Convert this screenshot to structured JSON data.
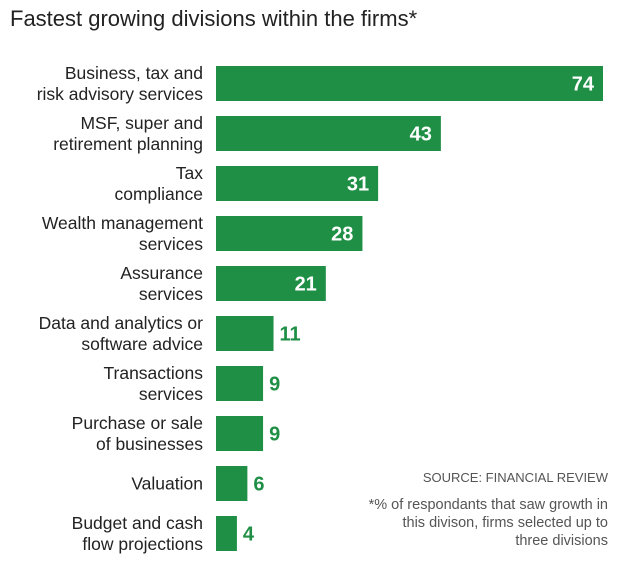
{
  "chart_data": {
    "type": "bar",
    "orientation": "horizontal",
    "title": "Fastest growing divisions within the firms*",
    "categories": [
      [
        "Business, tax and",
        "risk advisory services"
      ],
      [
        "MSF, super and",
        "retirement planning"
      ],
      [
        "Tax",
        "compliance"
      ],
      [
        "Wealth management",
        "services"
      ],
      [
        "Assurance",
        "services"
      ],
      [
        "Data and analytics or",
        "software advice"
      ],
      [
        "Transactions",
        "services"
      ],
      [
        "Purchase or sale",
        "of businesses"
      ],
      [
        "Valuation"
      ],
      [
        "Budget and cash",
        "flow projections"
      ]
    ],
    "values": [
      74,
      43,
      31,
      28,
      21,
      11,
      9,
      9,
      6,
      4
    ],
    "xlim": [
      0,
      74
    ],
    "grid": false,
    "legend": "none",
    "bar_color": "#1f8f45",
    "label_inside_color": "#ffffff",
    "label_outside_color": "#1f8f45"
  },
  "source": "SOURCE: FINANCIAL REVIEW",
  "footnote": "*% of respondants that saw growth in this divison, firms selected up to three divisions"
}
